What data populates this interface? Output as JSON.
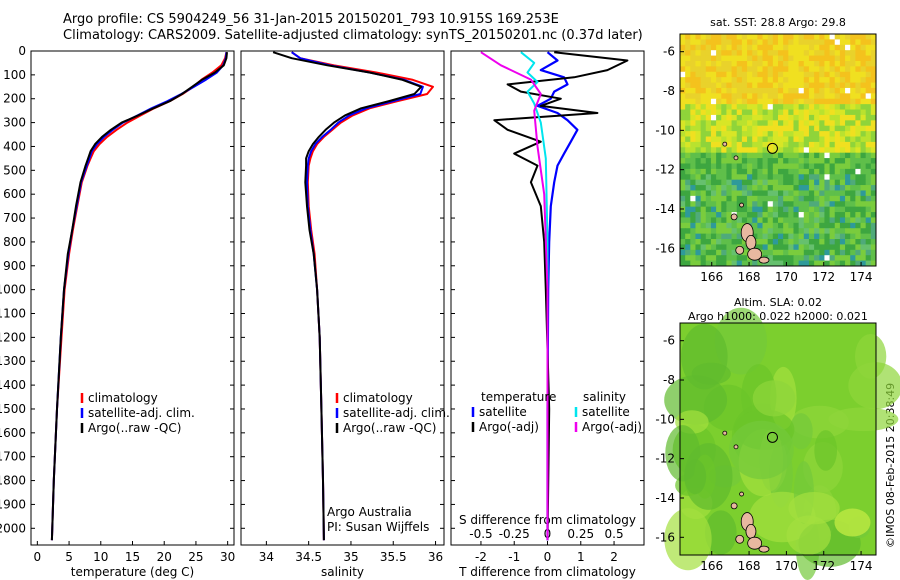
{
  "header": {
    "line1": "Argo profile: CS 5904249_56 31-Jan-2015 20150201_793 10.915S 169.253E",
    "line2": "Climatology: CARS2009. Satellite-adjusted climatology: synTS_20150201.nc (0.37d later)"
  },
  "footer_stamp": "©IMOS 08-Feb-2015 20:38:49",
  "colors": {
    "climatology": "#ff0000",
    "satellite": "#0000ff",
    "argo": "#000000",
    "sat_salinity": "#00e5ee",
    "argo_adj_salinity": "#ee00ee"
  },
  "chart_data": [
    {
      "type": "line",
      "name": "temperature-profile",
      "xlabel": "temperature (deg C)",
      "xlim": [
        -1,
        31
      ],
      "ylim": [
        2070,
        0
      ],
      "y_ticks": [
        0,
        100,
        200,
        300,
        400,
        500,
        600,
        700,
        800,
        900,
        1000,
        1100,
        1200,
        1300,
        1400,
        1500,
        1600,
        1700,
        1800,
        1900,
        2000
      ],
      "x_ticks": [
        0,
        5,
        10,
        15,
        20,
        25,
        30
      ],
      "legend": [
        "climatology",
        "satellite-adj. clim.",
        "Argo(..raw -QC)"
      ],
      "series": [
        {
          "name": "climatology",
          "color": "#ff0000",
          "x": [
            29.8,
            29.6,
            29.0,
            27.6,
            25.9,
            24.6,
            22.9,
            20.9,
            18.4,
            16.3,
            14.2,
            12.5,
            11.0,
            9.8,
            8.9,
            8.4,
            7.9,
            7.0,
            6.3,
            5.6,
            5.0,
            4.3,
            3.8,
            3.1,
            2.6,
            2.3
          ],
          "y": [
            5,
            30,
            60,
            90,
            120,
            150,
            180,
            210,
            240,
            270,
            300,
            330,
            360,
            390,
            420,
            450,
            480,
            550,
            650,
            750,
            850,
            1000,
            1200,
            1500,
            1800,
            2050
          ]
        },
        {
          "name": "satellite-adj. clim.",
          "color": "#0000ff",
          "x": [
            29.8,
            29.7,
            29.3,
            28.3,
            26.6,
            24.7,
            22.7,
            20.5,
            18.0,
            15.8,
            13.5,
            11.9,
            10.5,
            9.4,
            8.6,
            8.2,
            7.8,
            6.9,
            6.2,
            5.5,
            4.9,
            4.2,
            3.7,
            3.1,
            2.6,
            2.3
          ],
          "y": [
            5,
            30,
            60,
            90,
            120,
            150,
            180,
            210,
            240,
            270,
            300,
            330,
            360,
            390,
            420,
            450,
            480,
            550,
            650,
            750,
            850,
            1000,
            1200,
            1500,
            1800,
            2050
          ]
        },
        {
          "name": "Argo(..raw -QC)",
          "color": "#000000",
          "x": [
            29.9,
            29.8,
            29.4,
            28.0,
            26.0,
            24.4,
            22.8,
            20.9,
            18.3,
            15.9,
            13.3,
            11.6,
            10.2,
            9.1,
            8.4,
            8.0,
            7.6,
            6.8,
            6.1,
            5.5,
            4.8,
            4.2,
            3.7,
            3.1,
            2.6,
            2.3
          ],
          "y": [
            5,
            30,
            60,
            90,
            120,
            150,
            180,
            210,
            240,
            270,
            300,
            330,
            360,
            390,
            420,
            450,
            480,
            550,
            650,
            750,
            850,
            1000,
            1200,
            1500,
            1800,
            2050
          ]
        }
      ]
    },
    {
      "type": "line",
      "name": "salinity-profile",
      "xlabel": "salinity",
      "xlim": [
        33.7,
        36.1
      ],
      "ylim": [
        2070,
        0
      ],
      "x_ticks": [
        34,
        34.5,
        35,
        35.5,
        36
      ],
      "legend": [
        "climatology",
        "satellite-adj. clim.",
        "Argo(..raw -QC)"
      ],
      "annotation": [
        "Argo Australia",
        "PI: Susan Wijffels"
      ],
      "series": [
        {
          "name": "climatology",
          "color": "#ff0000",
          "x": [
            34.3,
            34.4,
            34.8,
            35.3,
            35.72,
            35.97,
            35.9,
            35.55,
            35.22,
            35.02,
            34.88,
            34.78,
            34.68,
            34.6,
            34.55,
            34.52,
            34.5,
            34.49,
            34.5,
            34.53,
            34.57,
            34.6,
            34.63,
            34.65,
            34.67,
            34.68
          ],
          "y": [
            5,
            30,
            60,
            90,
            120,
            150,
            180,
            210,
            240,
            270,
            300,
            330,
            360,
            390,
            420,
            450,
            480,
            550,
            650,
            750,
            850,
            1000,
            1200,
            1500,
            1800,
            2050
          ]
        },
        {
          "name": "satellite-adj. clim.",
          "color": "#0000ff",
          "x": [
            34.3,
            34.4,
            34.75,
            35.22,
            35.62,
            35.85,
            35.82,
            35.5,
            35.18,
            34.98,
            34.85,
            34.76,
            34.66,
            34.58,
            34.53,
            34.5,
            34.49,
            34.48,
            34.49,
            34.52,
            34.56,
            34.6,
            34.63,
            34.65,
            34.67,
            34.68
          ],
          "y": [
            5,
            30,
            60,
            90,
            120,
            150,
            180,
            210,
            240,
            270,
            300,
            330,
            360,
            390,
            420,
            450,
            480,
            550,
            650,
            750,
            850,
            1000,
            1200,
            1500,
            1800,
            2050
          ]
        },
        {
          "name": "Argo(..raw -QC)",
          "color": "#000000",
          "x": [
            34.08,
            34.3,
            34.72,
            35.22,
            35.6,
            35.83,
            35.75,
            35.45,
            35.12,
            34.93,
            34.8,
            34.7,
            34.62,
            34.55,
            34.5,
            34.47,
            34.47,
            34.46,
            34.48,
            34.51,
            34.56,
            34.6,
            34.63,
            34.65,
            34.67,
            34.68
          ],
          "y": [
            5,
            30,
            60,
            90,
            120,
            150,
            180,
            210,
            240,
            270,
            300,
            330,
            360,
            390,
            420,
            450,
            480,
            550,
            650,
            750,
            850,
            1000,
            1200,
            1500,
            1800,
            2050
          ]
        }
      ]
    },
    {
      "type": "line",
      "name": "difference-profile",
      "xlabel": "T difference from climatology",
      "xlabel_top": "S difference from climatology",
      "x_ticks": [
        -2,
        -1,
        0,
        1,
        2
      ],
      "s_ticks": [
        "-0.5",
        "-0.25",
        "0",
        "0.25",
        "0.5"
      ],
      "xlim": [
        -2.9,
        2.9
      ],
      "ylim": [
        2070,
        0
      ],
      "legend_temperature_title": "temperature",
      "legend_salinity_title": "salinity",
      "legend": [
        "satellite",
        "Argo(-adj)",
        "satellite",
        "Argo(-adj)"
      ],
      "series": [
        {
          "name": "T satellite",
          "color": "#0000ff",
          "x": [
            0,
            0.3,
            -0.2,
            0.5,
            0.6,
            0.2,
            0.1,
            -0.3,
            0.3,
            0.6,
            0.9,
            0.7,
            0.5,
            0.3,
            0.2,
            0.1,
            0.05,
            0.02,
            0,
            0
          ],
          "y": [
            5,
            40,
            80,
            110,
            140,
            170,
            200,
            230,
            260,
            290,
            330,
            380,
            430,
            480,
            550,
            650,
            800,
            1000,
            1500,
            2050
          ]
        },
        {
          "name": "T Argo(-adj)",
          "color": "#000000",
          "x": [
            0.2,
            2.4,
            1.8,
            0.8,
            -1.2,
            -0.8,
            0.4,
            -0.2,
            1.5,
            -1.6,
            -1.2,
            -0.2,
            -1.0,
            -0.3,
            -0.5,
            -0.2,
            -0.1,
            -0.05,
            0.05,
            0
          ],
          "y": [
            5,
            40,
            80,
            110,
            140,
            170,
            200,
            230,
            260,
            290,
            330,
            380,
            430,
            480,
            550,
            650,
            800,
            1000,
            1500,
            2050
          ]
        },
        {
          "name": "S satellite",
          "color": "#00e5ee",
          "x": [
            -0.8,
            -0.4,
            -0.6,
            -0.3,
            -0.6,
            -0.4,
            -0.2,
            -0.05,
            0,
            0
          ],
          "y": [
            5,
            50,
            90,
            130,
            170,
            220,
            300,
            450,
            800,
            2050
          ]
        },
        {
          "name": "S Argo(-adj)",
          "color": "#ee00ee",
          "x": [
            -2.0,
            -1.4,
            -0.5,
            -0.2,
            -0.4,
            -0.3,
            -0.1,
            0,
            0
          ],
          "y": [
            5,
            60,
            120,
            180,
            250,
            400,
            600,
            1000,
            2050
          ]
        }
      ]
    },
    {
      "type": "heatmap",
      "name": "sst-map",
      "title": "sat. SST: 28.8 Argo: 29.8",
      "x_ticks": [
        "166",
        "168",
        "170",
        "172",
        "174"
      ],
      "y_ticks": [
        "-6",
        "-8",
        "-10",
        "-12",
        "-14",
        "-16"
      ],
      "xlim": [
        164.3,
        174.8
      ],
      "ylim": [
        -16.9,
        -5.1
      ],
      "argo_position": {
        "lon": 169.253,
        "lat": -10.915
      }
    },
    {
      "type": "heatmap",
      "name": "sla-map",
      "title": [
        "Altim. SLA: 0.02",
        "Argo h1000: 0.022 h2000: 0.021"
      ],
      "x_ticks": [
        "166",
        "168",
        "170",
        "172",
        "174"
      ],
      "y_ticks": [
        "-6",
        "-8",
        "-10",
        "-12",
        "-14",
        "-16"
      ],
      "xlim": [
        164.3,
        174.8
      ],
      "ylim": [
        -16.9,
        -5.1
      ],
      "argo_position": {
        "lon": 169.253,
        "lat": -10.915
      }
    }
  ]
}
